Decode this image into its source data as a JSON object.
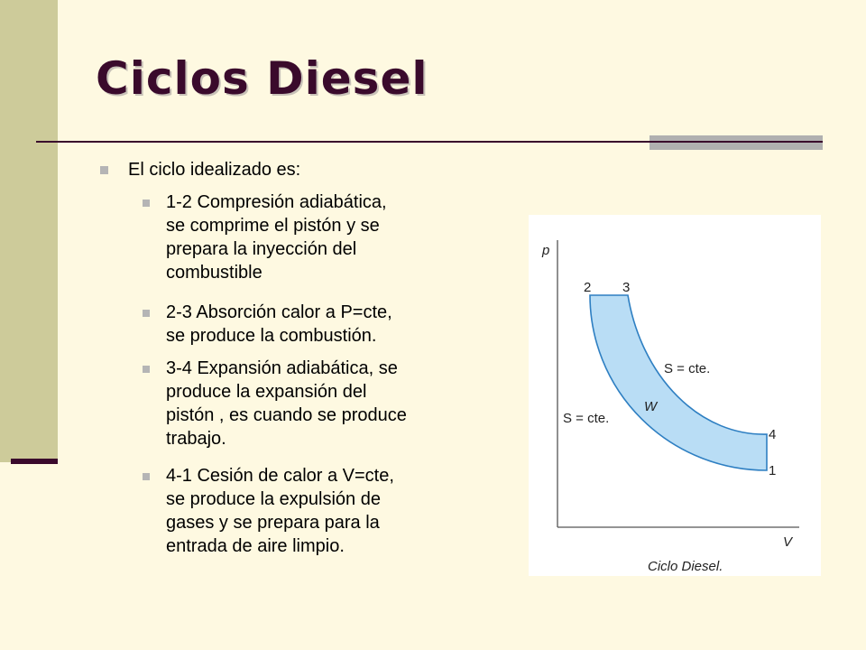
{
  "slide": {
    "title": "Ciclos Diesel",
    "intro": "El ciclo idealizado es:",
    "items": [
      {
        "line1": "1-2 Compresión adiabática,",
        "line2": "se comprime el pistón y se",
        "line3": "prepara la inyección del",
        "line4": "combustible"
      },
      {
        "line1": "2-3 Absorción calor a P=cte,",
        "line2": "se produce la combustión."
      },
      {
        "line1": "3-4 Expansión adiabática, se",
        "line2": "produce la expansión del",
        "line3": "pistón , es cuando se produce",
        "line4": "trabajo."
      },
      {
        "line1": "4-1 Cesión de calor a V=cte,",
        "line2": "se produce la expulsión de",
        "line3": "gases y se prepara para la",
        "line4": "entrada de aire limpio."
      }
    ]
  },
  "diagram": {
    "y_axis": "p",
    "x_axis": "V",
    "points": [
      "1",
      "2",
      "3",
      "4"
    ],
    "upper_curve": "S = cte.",
    "lower_curve": "S = cte.",
    "work": "W",
    "caption": "Ciclo Diesel."
  },
  "colors": {
    "background": "#FEF9E1",
    "side_bar": "#CDCB9A",
    "title": "#3A0A2C",
    "area_fill": "#B9DDF5",
    "area_stroke": "#2E7FC2"
  }
}
